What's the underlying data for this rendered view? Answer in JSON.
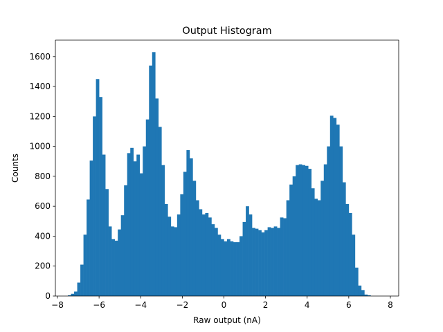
{
  "chart_data": {
    "type": "bar",
    "title": "Output Histogram",
    "xlabel": "Raw output (nA)",
    "ylabel": "Counts",
    "xlim": [
      -8.1,
      8.4
    ],
    "ylim": [
      0,
      1710
    ],
    "xticks": [
      -8,
      -6,
      -4,
      -2,
      0,
      2,
      4,
      6,
      8
    ],
    "xtick_labels": [
      "−8",
      "−6",
      "−4",
      "−2",
      "0",
      "2",
      "4",
      "6",
      "8"
    ],
    "yticks": [
      0,
      200,
      400,
      600,
      800,
      1000,
      1200,
      1400,
      1600
    ],
    "ytick_labels": [
      "0",
      "200",
      "400",
      "600",
      "800",
      "1000",
      "1200",
      "1400",
      "1600"
    ],
    "bin_start": -7.5,
    "bin_width": 0.15,
    "values": [
      5,
      15,
      30,
      90,
      210,
      410,
      645,
      905,
      1200,
      1450,
      1330,
      945,
      715,
      465,
      380,
      370,
      445,
      540,
      740,
      955,
      990,
      900,
      945,
      820,
      1000,
      1180,
      1540,
      1630,
      1320,
      1130,
      875,
      615,
      530,
      465,
      460,
      545,
      680,
      830,
      975,
      920,
      770,
      640,
      580,
      545,
      555,
      525,
      480,
      455,
      410,
      380,
      365,
      380,
      365,
      360,
      360,
      400,
      495,
      600,
      545,
      455,
      450,
      440,
      425,
      440,
      460,
      455,
      465,
      455,
      525,
      520,
      640,
      745,
      800,
      875,
      880,
      875,
      870,
      850,
      720,
      650,
      640,
      770,
      880,
      1000,
      1205,
      1190,
      1145,
      1000,
      760,
      615,
      555,
      410,
      190,
      70,
      40,
      10,
      5
    ],
    "bar_color": "#1f77b4"
  }
}
